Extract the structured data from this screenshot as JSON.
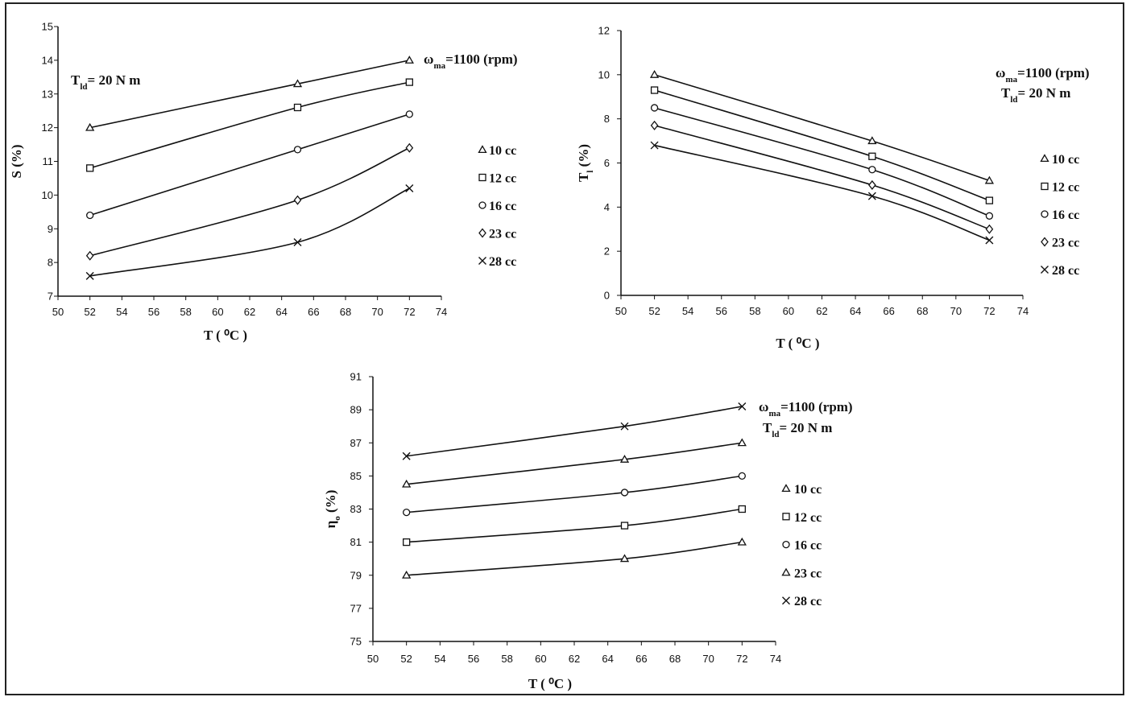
{
  "chart_data": [
    {
      "type": "line",
      "id": "slip",
      "xlabel": "T ( ⁰C )",
      "ylabel": "S (%)",
      "xlim": [
        50,
        74
      ],
      "xstep": 2,
      "ylim": [
        7,
        15
      ],
      "ystep": 1,
      "x": [
        52,
        65,
        72
      ],
      "annotation": {
        "speed": "ωma=1100 (rpm)",
        "load": "Tld= 20 N m"
      },
      "series": [
        {
          "name": "10 cc",
          "marker": "triangle",
          "values": [
            12,
            13.3,
            14
          ]
        },
        {
          "name": "12 cc",
          "marker": "square",
          "values": [
            10.8,
            12.6,
            13.35
          ]
        },
        {
          "name": "16 cc",
          "marker": "circle",
          "values": [
            9.4,
            11.35,
            12.4
          ]
        },
        {
          "name": "23 cc",
          "marker": "diamond",
          "values": [
            8.2,
            9.85,
            11.4
          ]
        },
        {
          "name": "28 cc",
          "marker": "cross",
          "values": [
            7.6,
            8.6,
            10.2
          ]
        }
      ]
    },
    {
      "type": "line",
      "id": "leakage",
      "xlabel": "T ( ⁰C )",
      "ylabel": "Tl (%)",
      "xlim": [
        50,
        74
      ],
      "xstep": 2,
      "ylim": [
        0,
        12
      ],
      "ystep": 2,
      "x": [
        52,
        65,
        72
      ],
      "annotation": {
        "speed": "ωma=1100 (rpm)",
        "load": "Tld= 20 N m"
      },
      "series": [
        {
          "name": "10 cc",
          "marker": "triangle",
          "values": [
            10,
            7,
            5.2
          ]
        },
        {
          "name": "12 cc",
          "marker": "square",
          "values": [
            9.3,
            6.3,
            4.3
          ]
        },
        {
          "name": "16 cc",
          "marker": "circle",
          "values": [
            8.5,
            5.7,
            3.6
          ]
        },
        {
          "name": "23 cc",
          "marker": "diamond",
          "values": [
            7.7,
            5,
            3
          ]
        },
        {
          "name": "28 cc",
          "marker": "cross",
          "values": [
            6.8,
            4.5,
            2.5
          ]
        }
      ]
    },
    {
      "type": "line",
      "id": "efficiency",
      "xlabel": "T ( ⁰C )",
      "ylabel": "ηo (%)",
      "xlim": [
        50,
        74
      ],
      "xstep": 2,
      "ylim": [
        75,
        91
      ],
      "ystep": 2,
      "x": [
        52,
        65,
        72
      ],
      "annotation": {
        "speed": "ωma=1100 (rpm)",
        "load": "Tld= 20 N m"
      },
      "series": [
        {
          "name": "10 cc",
          "marker": "triangle",
          "values": [
            79,
            80,
            81
          ]
        },
        {
          "name": "12 cc",
          "marker": "square",
          "values": [
            81,
            82,
            83
          ]
        },
        {
          "name": "16 cc",
          "marker": "circle",
          "values": [
            82.8,
            84,
            85
          ]
        },
        {
          "name": "23 cc",
          "marker": "triangle",
          "values": [
            84.5,
            86,
            87
          ]
        },
        {
          "name": "28 cc",
          "marker": "cross",
          "values": [
            86.2,
            88,
            89.2
          ]
        }
      ]
    }
  ]
}
